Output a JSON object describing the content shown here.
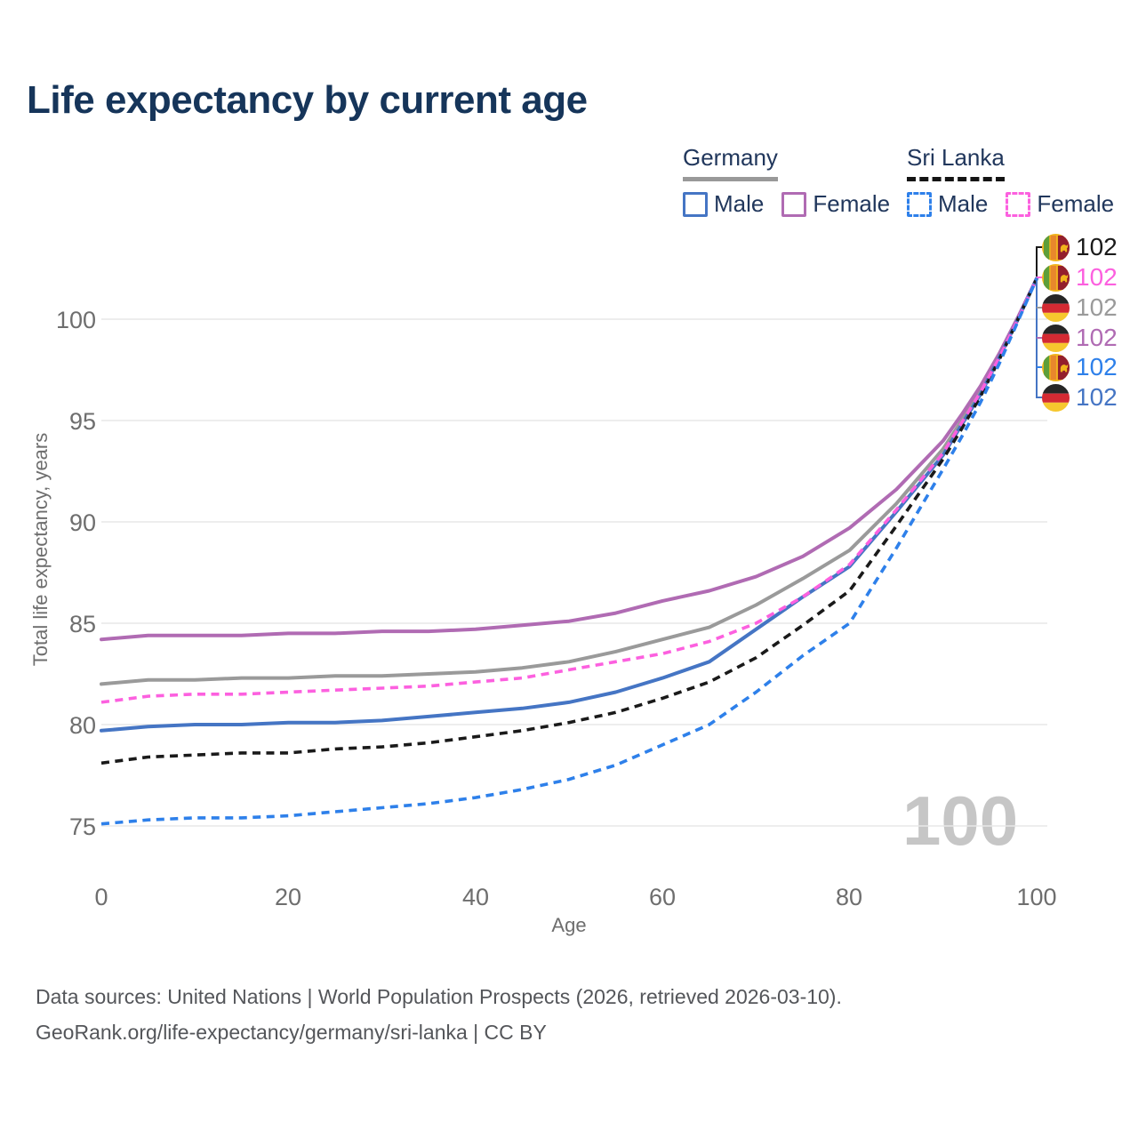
{
  "title": "Life expectancy by current age",
  "colors": {
    "title": "#16355a",
    "legend_text": "#21375c",
    "germany_underline": "#999999",
    "sri_lanka_underline": "#141414",
    "grid": "#e7e7e7",
    "tick_text": "#6e6e6e",
    "watermark": "#c6c6c6",
    "footer_text": "#54565a"
  },
  "legend": {
    "germany": {
      "label": "Germany",
      "male": "Male",
      "female": "Female"
    },
    "sri_lanka": {
      "label": "Sri Lanka",
      "male": "Male",
      "female": "Female"
    }
  },
  "axes": {
    "x_title": "Age",
    "y_title": "Total life expectancy, years"
  },
  "watermark_age": "100",
  "chart_data": {
    "type": "line",
    "title": "Life expectancy by current age",
    "xlabel": "Age",
    "ylabel": "Total life expectancy, years",
    "xlim": [
      0,
      100
    ],
    "ylim": [
      73.5,
      103
    ],
    "xticks": [
      0,
      20,
      40,
      60,
      80,
      100
    ],
    "yticks": [
      75,
      80,
      85,
      90,
      95,
      100
    ],
    "grid": "horizontal",
    "legend_position": "top-right",
    "x": [
      0,
      5,
      10,
      15,
      20,
      25,
      30,
      35,
      40,
      45,
      50,
      55,
      60,
      65,
      70,
      75,
      80,
      85,
      90,
      92,
      94,
      96,
      98,
      100
    ],
    "series": [
      {
        "name": "Germany Both sexes",
        "country": "Germany",
        "sex": "both",
        "style": "solid",
        "color": "#9a9a9a",
        "values": [
          82.0,
          82.2,
          82.2,
          82.3,
          82.3,
          82.4,
          82.4,
          82.5,
          82.6,
          82.8,
          83.1,
          83.6,
          84.2,
          84.8,
          85.9,
          87.2,
          88.6,
          90.9,
          93.6,
          95.0,
          96.5,
          98.2,
          100.0,
          102.0
        ]
      },
      {
        "name": "Germany Female",
        "country": "Germany",
        "sex": "female",
        "style": "solid",
        "color": "#b06bb3",
        "values": [
          84.2,
          84.4,
          84.4,
          84.4,
          84.5,
          84.5,
          84.6,
          84.6,
          84.7,
          84.9,
          85.1,
          85.5,
          86.1,
          86.6,
          87.3,
          88.3,
          89.7,
          91.6,
          94.0,
          95.3,
          96.7,
          98.3,
          100.1,
          102.0
        ]
      },
      {
        "name": "Germany Male",
        "country": "Germany",
        "sex": "male",
        "style": "solid",
        "color": "#4575c4",
        "values": [
          79.7,
          79.9,
          80.0,
          80.0,
          80.1,
          80.1,
          80.2,
          80.4,
          80.6,
          80.8,
          81.1,
          81.6,
          82.3,
          83.1,
          84.7,
          86.3,
          87.8,
          90.5,
          93.3,
          94.8,
          96.3,
          98.1,
          100.0,
          102.0
        ]
      },
      {
        "name": "Sri Lanka Both sexes",
        "country": "Sri Lanka",
        "sex": "both",
        "style": "dashed",
        "color": "#1a1a1a",
        "values": [
          78.1,
          78.4,
          78.5,
          78.6,
          78.6,
          78.8,
          78.9,
          79.1,
          79.4,
          79.7,
          80.1,
          80.6,
          81.3,
          82.1,
          83.3,
          84.9,
          86.6,
          89.8,
          93.1,
          94.6,
          96.2,
          98.0,
          100.0,
          102.0
        ]
      },
      {
        "name": "Sri Lanka Female",
        "country": "Sri Lanka",
        "sex": "female",
        "style": "dashed",
        "color": "#fc60df",
        "values": [
          81.1,
          81.4,
          81.5,
          81.5,
          81.6,
          81.7,
          81.8,
          81.9,
          82.1,
          82.3,
          82.7,
          83.1,
          83.5,
          84.1,
          85.0,
          86.3,
          87.9,
          90.6,
          93.4,
          94.9,
          96.4,
          98.1,
          100.0,
          102.0
        ]
      },
      {
        "name": "Sri Lanka Male",
        "country": "Sri Lanka",
        "sex": "male",
        "style": "dashed",
        "color": "#2e80ea",
        "values": [
          75.1,
          75.3,
          75.4,
          75.4,
          75.5,
          75.7,
          75.9,
          76.1,
          76.4,
          76.8,
          77.3,
          78.0,
          79.0,
          80.0,
          81.6,
          83.4,
          85.0,
          88.7,
          92.6,
          94.2,
          95.9,
          97.8,
          99.9,
          102.0
        ]
      }
    ]
  },
  "end_labels": [
    {
      "flag": "sri-lanka",
      "series": "Sri Lanka Both sexes",
      "value": "102",
      "color": "#1a1a1a"
    },
    {
      "flag": "sri-lanka",
      "series": "Sri Lanka Female",
      "value": "102",
      "color": "#fc60df"
    },
    {
      "flag": "germany",
      "series": "Germany Both sexes",
      "value": "102",
      "color": "#9a9a9a"
    },
    {
      "flag": "germany",
      "series": "Germany Female",
      "value": "102",
      "color": "#b06bb3"
    },
    {
      "flag": "sri-lanka",
      "series": "Sri Lanka Male",
      "value": "102",
      "color": "#2e80ea"
    },
    {
      "flag": "germany",
      "series": "Germany Male",
      "value": "102",
      "color": "#4575c4"
    }
  ],
  "footer": {
    "line1": "Data sources: United Nations | World Population Prospects (2026, retrieved 2026-03-10).",
    "line2": "GeoRank.org/life-expectancy/germany/sri-lanka | CC BY"
  }
}
